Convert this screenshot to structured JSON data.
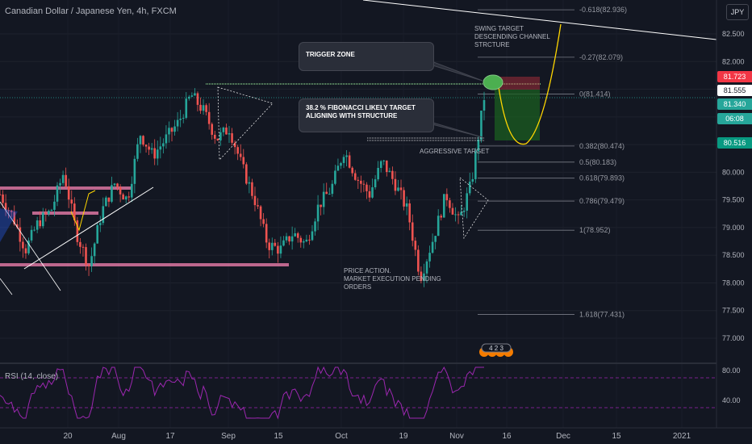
{
  "header": {
    "title": "Canadian Dollar / Japanese Yen, 4h, FXCM",
    "currency": "JPY"
  },
  "rsi": {
    "title": "RSI (14, close)",
    "ticks": [
      "80.00",
      "40.00"
    ]
  },
  "annotations": {
    "trigger_zone": "TRIGGER ZONE",
    "fib_target_line1": "38.2 % FIBONACCI LIKELY TARGET",
    "fib_target_line2": "ALIGNING WITH STRUCTURE",
    "swing_line1": "SWING TARGET",
    "swing_line2": "DESCENDING CHANNEL",
    "swing_line3": "STRCTURE",
    "aggressive": "AGGRESSIVE TARGET",
    "pa_line1": "PRICE ACTION.",
    "pa_line2": "MARKET EXECUTION PENDING",
    "pa_line3": "ORDERS",
    "event_count": "4 2 3"
  },
  "price_badges": [
    {
      "value": "81.723",
      "color": "#f23645",
      "text_color": "#ffffff"
    },
    {
      "value": "81.555",
      "color": "#ffffff",
      "text_color": "#131722"
    },
    {
      "value": "81.340",
      "color": "#26a69a",
      "text_color": "#ffffff"
    },
    {
      "value": "06:08",
      "color": "#26a69a",
      "text_color": "#ffffff"
    },
    {
      "value": "80.516",
      "color": "#089981",
      "text_color": "#ffffff"
    }
  ],
  "chart_data": {
    "type": "candlestick",
    "title": "Canadian Dollar / Japanese Yen, 4h, FXCM",
    "ylim": [
      76.6,
      83.2
    ],
    "y_ticks": [
      "82.500",
      "82.000",
      "81.500",
      "81.000",
      "80.500",
      "80.000",
      "79.500",
      "79.000",
      "78.500",
      "78.000",
      "77.500",
      "77.000"
    ],
    "x_ticks": [
      "20",
      "Aug",
      "17",
      "Sep",
      "15",
      "Oct",
      "19",
      "Nov",
      "16",
      "Dec",
      "15",
      "2021"
    ],
    "fibonacci": [
      {
        "label": "-0.618(82.936)",
        "price": 82.936
      },
      {
        "label": "-0.27(82.079)",
        "price": 82.079
      },
      {
        "label": "0(81.414)",
        "price": 81.414
      },
      {
        "label": "0.382(80.474)",
        "price": 80.474
      },
      {
        "label": "0.5(80.183)",
        "price": 80.183
      },
      {
        "label": "0.618(79.893)",
        "price": 79.893
      },
      {
        "label": "0.786(79.479)",
        "price": 79.479
      },
      {
        "label": "1(78.952)",
        "price": 78.952
      },
      {
        "label": "1.618(77.431)",
        "price": 77.431
      }
    ],
    "price_path": [
      {
        "date": "Jul 6",
        "price": 79.6
      },
      {
        "date": "Jul 10",
        "price": 79.2
      },
      {
        "date": "Jul 14",
        "price": 78.6
      },
      {
        "date": "Jul 17",
        "price": 79.1
      },
      {
        "date": "Jul 21",
        "price": 79.3
      },
      {
        "date": "Jul 25",
        "price": 80.0
      },
      {
        "date": "Jul 28",
        "price": 78.9
      },
      {
        "date": "Jul 31",
        "price": 78.3
      },
      {
        "date": "Aug 3",
        "price": 79.3
      },
      {
        "date": "Aug 7",
        "price": 79.8
      },
      {
        "date": "Aug 10",
        "price": 79.5
      },
      {
        "date": "Aug 13",
        "price": 80.7
      },
      {
        "date": "Aug 17",
        "price": 80.3
      },
      {
        "date": "Aug 21",
        "price": 80.6
      },
      {
        "date": "Aug 25",
        "price": 80.9
      },
      {
        "date": "Aug 28",
        "price": 81.4
      },
      {
        "date": "Sep 2",
        "price": 81.1
      },
      {
        "date": "Sep 5",
        "price": 80.6
      },
      {
        "date": "Sep 9",
        "price": 80.8
      },
      {
        "date": "Sep 13",
        "price": 80.1
      },
      {
        "date": "Sep 17",
        "price": 79.5
      },
      {
        "date": "Sep 21",
        "price": 78.7
      },
      {
        "date": "Sep 25",
        "price": 78.6
      },
      {
        "date": "Sep 29",
        "price": 78.9
      },
      {
        "date": "Oct 3",
        "price": 78.7
      },
      {
        "date": "Oct 6",
        "price": 79.4
      },
      {
        "date": "Oct 9",
        "price": 79.7
      },
      {
        "date": "Oct 13",
        "price": 80.4
      },
      {
        "date": "Oct 16",
        "price": 79.9
      },
      {
        "date": "Oct 19",
        "price": 79.6
      },
      {
        "date": "Oct 23",
        "price": 80.2
      },
      {
        "date": "Oct 26",
        "price": 79.8
      },
      {
        "date": "Oct 29",
        "price": 79.3
      },
      {
        "date": "Nov 1",
        "price": 78.1
      },
      {
        "date": "Nov 3",
        "price": 78.8
      },
      {
        "date": "Nov 5",
        "price": 79.6
      },
      {
        "date": "Nov 7",
        "price": 79.1
      },
      {
        "date": "Nov 9",
        "price": 79.8
      },
      {
        "date": "Nov 10",
        "price": 81.35
      }
    ]
  }
}
